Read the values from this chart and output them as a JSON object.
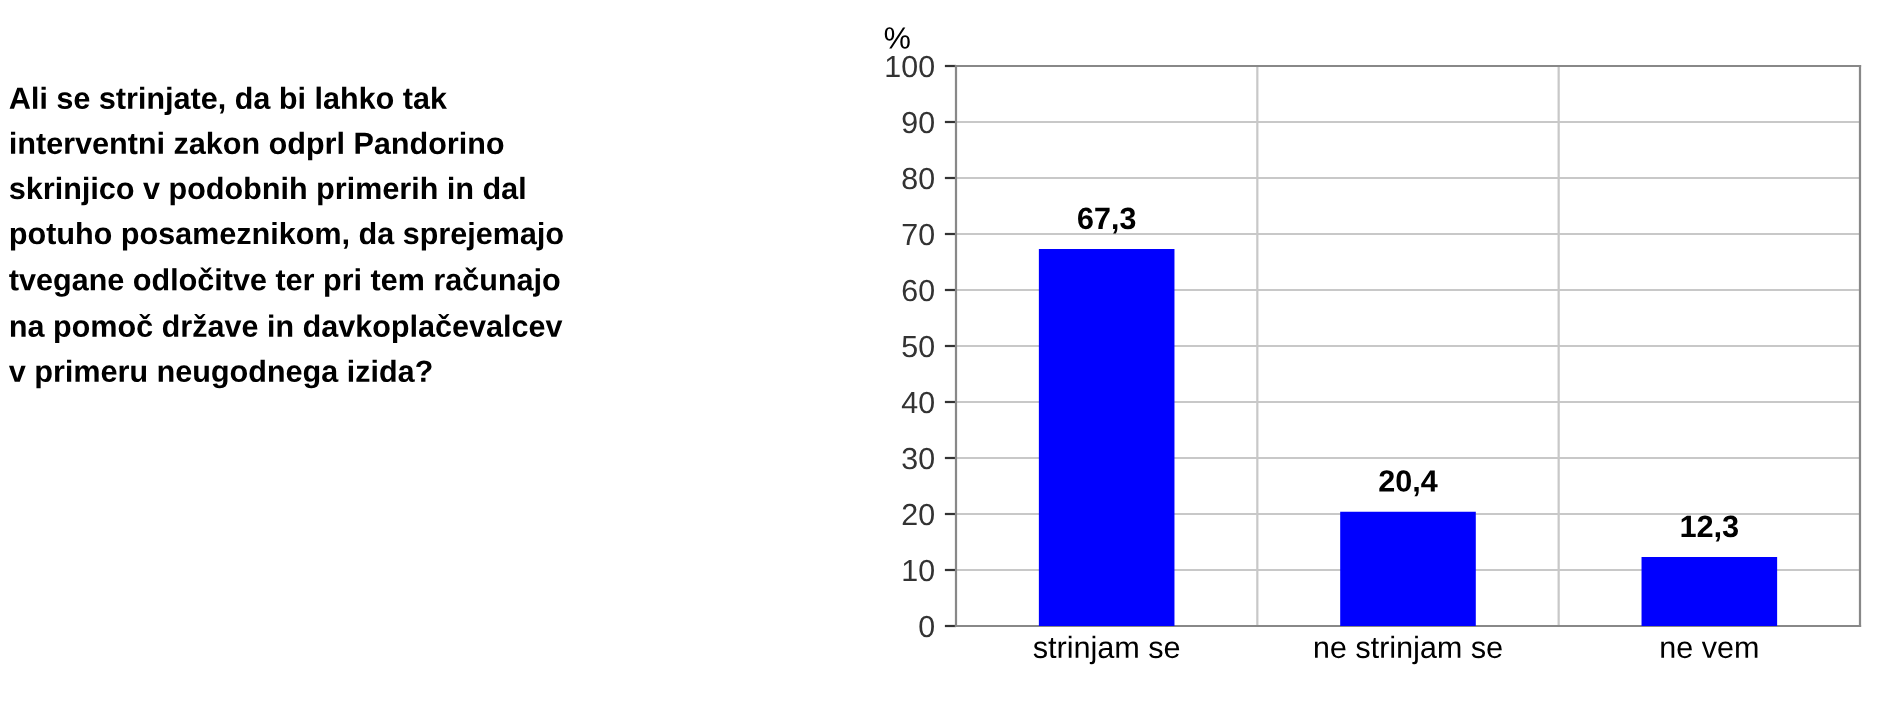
{
  "chart_data": {
    "type": "bar",
    "title": "Ali se strinjate, da bi lahko tak interventni zakon odprl Pandorino skrinjico v podobnih primerih in dal potuho posameznikom, da sprejemajo tvegane odločitve ter pri tem računajo na pomoč države in davkoplačevalcev v primeru neugodnega izida?",
    "ylabel": "%",
    "categories": [
      "strinjam se",
      "ne strinjam se",
      "ne vem"
    ],
    "values": [
      67.3,
      20.4,
      12.3
    ],
    "color": "#0000ff",
    "value_labels": [
      "67,3",
      "20,4",
      "12,3"
    ],
    "ylim": [
      0,
      100
    ],
    "yticks": [
      0,
      10,
      20,
      30,
      40,
      50,
      60,
      70,
      80,
      90,
      100
    ],
    "grid": true
  }
}
